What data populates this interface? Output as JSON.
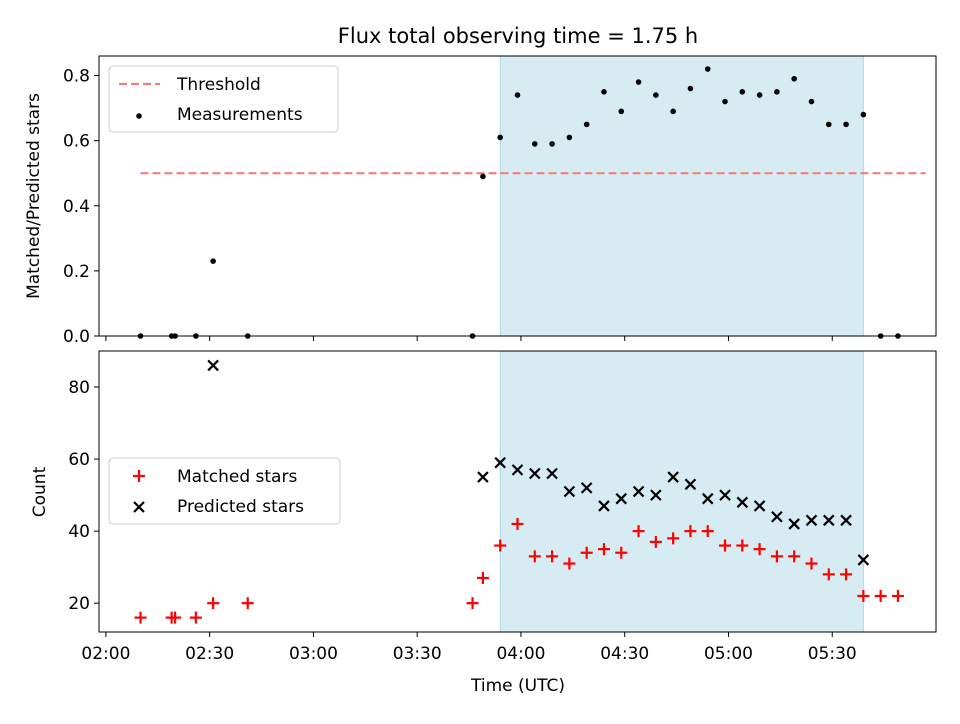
{
  "title": "Flux total observing time = 1.75 h",
  "colors": {
    "shade": "#add8e6",
    "threshold": "#f08080",
    "measurement": "#000000",
    "matched": "#ff0000",
    "predicted": "#000000"
  },
  "chart_data": [
    {
      "type": "scatter",
      "panel": "top",
      "title": "Flux total observing time = 1.75 h",
      "xlabel": "",
      "ylabel": "Matched/Predicted stars",
      "x_time_range": [
        "01:58",
        "06:00"
      ],
      "ylim": [
        0,
        0.86
      ],
      "y_ticks": [
        "0.0",
        "0.2",
        "0.4",
        "0.6",
        "0.8"
      ],
      "shaded_interval": [
        "03:54",
        "05:39"
      ],
      "threshold": {
        "name": "Threshold",
        "y": 0.5,
        "x_range": [
          "02:10",
          "05:57"
        ],
        "style": "dashed"
      },
      "legend": {
        "position": "upper-left",
        "entries": [
          "Threshold",
          "Measurements"
        ]
      },
      "series": [
        {
          "name": "Measurements",
          "marker": "dot",
          "points": [
            [
              "02:10",
              0.0
            ],
            [
              "02:19",
              0.0
            ],
            [
              "02:20",
              0.0
            ],
            [
              "02:26",
              0.0
            ],
            [
              "02:31",
              0.23
            ],
            [
              "02:41",
              0.0
            ],
            [
              "03:46",
              0.0
            ],
            [
              "03:49",
              0.49
            ],
            [
              "03:54",
              0.61
            ],
            [
              "03:59",
              0.74
            ],
            [
              "04:04",
              0.59
            ],
            [
              "04:09",
              0.59
            ],
            [
              "04:14",
              0.61
            ],
            [
              "04:19",
              0.65
            ],
            [
              "04:24",
              0.75
            ],
            [
              "04:29",
              0.69
            ],
            [
              "04:34",
              0.78
            ],
            [
              "04:39",
              0.74
            ],
            [
              "04:44",
              0.69
            ],
            [
              "04:49",
              0.76
            ],
            [
              "04:54",
              0.82
            ],
            [
              "04:59",
              0.72
            ],
            [
              "05:04",
              0.75
            ],
            [
              "05:09",
              0.74
            ],
            [
              "05:14",
              0.75
            ],
            [
              "05:19",
              0.79
            ],
            [
              "05:24",
              0.72
            ],
            [
              "05:29",
              0.65
            ],
            [
              "05:34",
              0.65
            ],
            [
              "05:39",
              0.68
            ],
            [
              "05:44",
              0.0
            ],
            [
              "05:49",
              0.0
            ]
          ]
        }
      ]
    },
    {
      "type": "scatter",
      "panel": "bottom",
      "xlabel": "Time (UTC)",
      "ylabel": "Count",
      "x_time_range": [
        "01:58",
        "06:00"
      ],
      "x_ticks": [
        "02:00",
        "02:30",
        "03:00",
        "03:30",
        "04:00",
        "04:30",
        "05:00",
        "05:30"
      ],
      "ylim": [
        12,
        90
      ],
      "y_ticks": [
        "20",
        "40",
        "60",
        "80"
      ],
      "shaded_interval": [
        "03:54",
        "05:39"
      ],
      "legend": {
        "position": "center-left",
        "entries": [
          "Matched stars",
          "Predicted stars"
        ]
      },
      "series": [
        {
          "name": "Matched stars",
          "marker": "plus",
          "points": [
            [
              "02:10",
              16
            ],
            [
              "02:19",
              16
            ],
            [
              "02:20",
              16
            ],
            [
              "02:26",
              16
            ],
            [
              "02:31",
              20
            ],
            [
              "02:41",
              20
            ],
            [
              "03:46",
              20
            ],
            [
              "03:49",
              27
            ],
            [
              "03:54",
              36
            ],
            [
              "03:59",
              42
            ],
            [
              "04:04",
              33
            ],
            [
              "04:09",
              33
            ],
            [
              "04:14",
              31
            ],
            [
              "04:19",
              34
            ],
            [
              "04:24",
              35
            ],
            [
              "04:29",
              34
            ],
            [
              "04:34",
              40
            ],
            [
              "04:39",
              37
            ],
            [
              "04:44",
              38
            ],
            [
              "04:49",
              40
            ],
            [
              "04:54",
              40
            ],
            [
              "04:59",
              36
            ],
            [
              "05:04",
              36
            ],
            [
              "05:09",
              35
            ],
            [
              "05:14",
              33
            ],
            [
              "05:19",
              33
            ],
            [
              "05:24",
              31
            ],
            [
              "05:29",
              28
            ],
            [
              "05:34",
              28
            ],
            [
              "05:39",
              22
            ],
            [
              "05:44",
              22
            ],
            [
              "05:49",
              22
            ]
          ]
        },
        {
          "name": "Predicted stars",
          "marker": "x",
          "points": [
            [
              "02:31",
              86
            ],
            [
              "03:49",
              55
            ],
            [
              "03:54",
              59
            ],
            [
              "03:59",
              57
            ],
            [
              "04:04",
              56
            ],
            [
              "04:09",
              56
            ],
            [
              "04:14",
              51
            ],
            [
              "04:19",
              52
            ],
            [
              "04:24",
              47
            ],
            [
              "04:29",
              49
            ],
            [
              "04:34",
              51
            ],
            [
              "04:39",
              50
            ],
            [
              "04:44",
              55
            ],
            [
              "04:49",
              53
            ],
            [
              "04:54",
              49
            ],
            [
              "04:59",
              50
            ],
            [
              "05:04",
              48
            ],
            [
              "05:09",
              47
            ],
            [
              "05:14",
              44
            ],
            [
              "05:19",
              42
            ],
            [
              "05:24",
              43
            ],
            [
              "05:29",
              43
            ],
            [
              "05:34",
              43
            ],
            [
              "05:39",
              32
            ]
          ]
        }
      ]
    }
  ]
}
